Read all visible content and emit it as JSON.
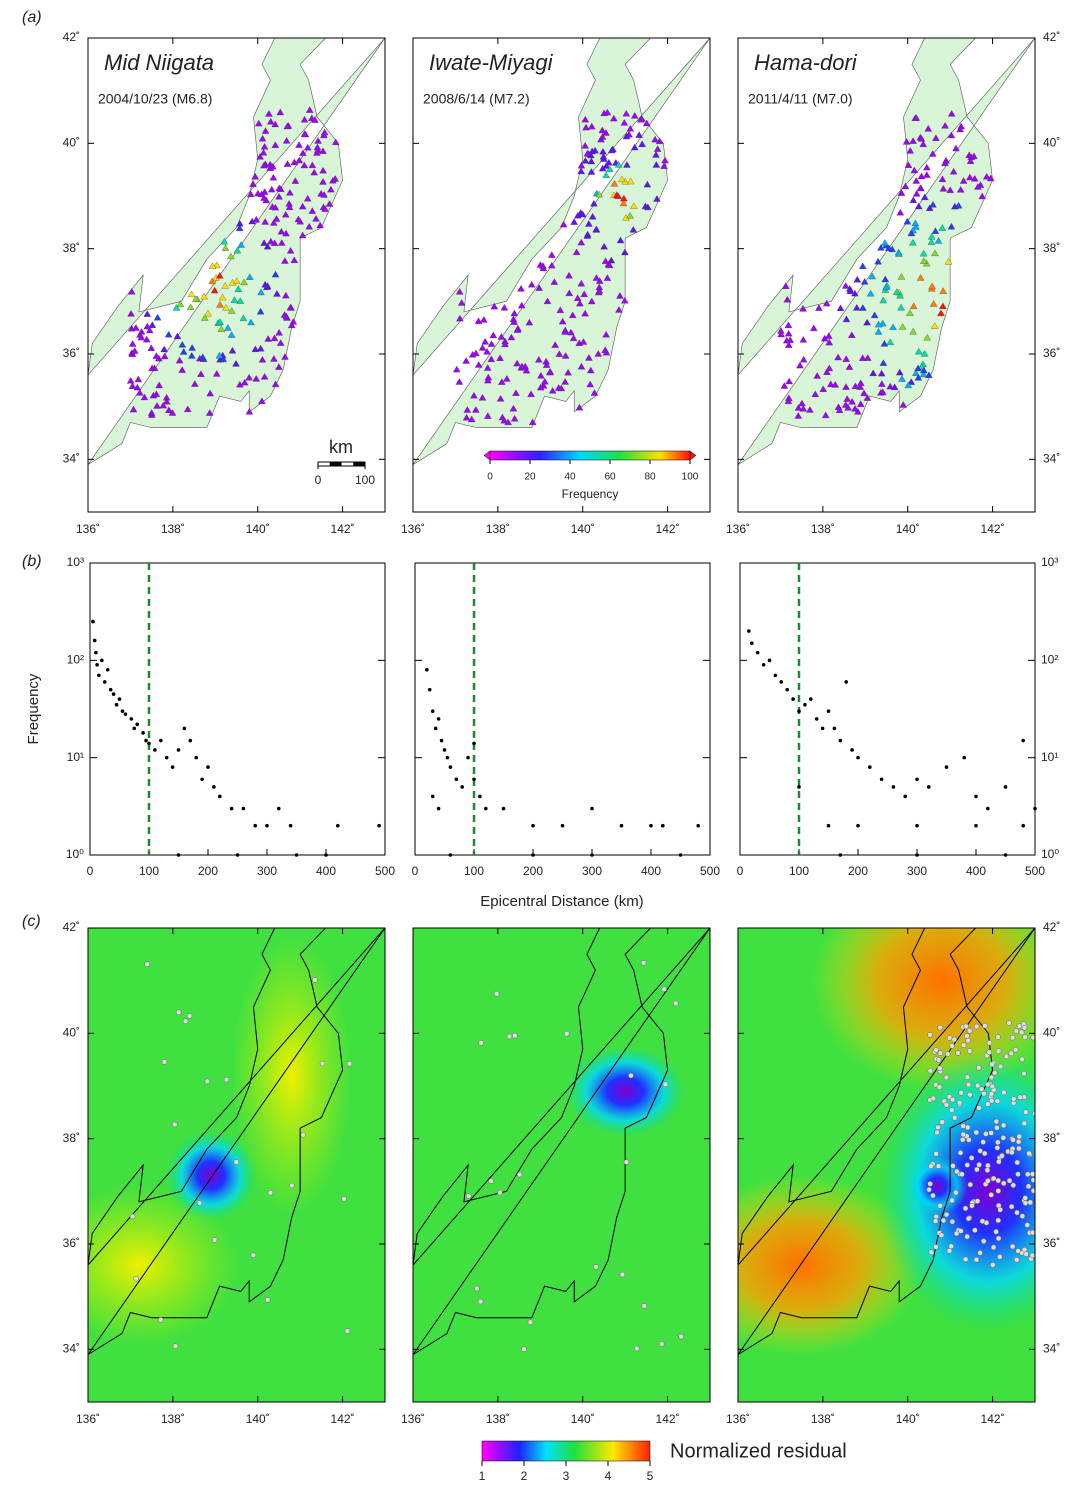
{
  "panel_labels": [
    "(a)",
    "(b)",
    "(c)"
  ],
  "map_axes": {
    "xlim": [
      136,
      143
    ],
    "ylim": [
      33,
      42
    ],
    "xticks": [
      {
        "value": 136,
        "label": "136˚"
      },
      {
        "value": 138,
        "label": "138˚"
      },
      {
        "value": 140,
        "label": "140˚"
      },
      {
        "value": 142,
        "label": "142˚"
      }
    ],
    "yticks": [
      {
        "value": 34,
        "label": "34˚"
      },
      {
        "value": 36,
        "label": "36˚"
      },
      {
        "value": 38,
        "label": "38˚"
      },
      {
        "value": 40,
        "label": "40˚"
      },
      {
        "value": 42,
        "label": "42˚"
      }
    ]
  },
  "events": [
    {
      "name": "Mid Niigata",
      "detail": "2004/10/23 (M6.8)"
    },
    {
      "name": "Iwate-Miyagi",
      "detail": "2008/6/14 (M7.2)"
    },
    {
      "name": "Hama-dori",
      "detail": "2011/4/11 (M7.0)"
    }
  ],
  "scale_bar": {
    "title": "km",
    "ticks": [
      0,
      100
    ]
  },
  "frequency_colorbar": {
    "title": "Frequency",
    "lim": [
      0,
      100
    ],
    "ticks": [
      0,
      20,
      40,
      60,
      80,
      100
    ]
  },
  "residual_colorbar": {
    "title": "Normalized residual",
    "lim": [
      1,
      5
    ],
    "ticks": [
      1,
      2,
      3,
      4,
      5
    ]
  },
  "x_label": "Epicentral Distance (km)",
  "chart_data": [
    {
      "type": "scatter",
      "y_label": "Frequency",
      "log_y": true,
      "xlim": [
        0,
        500
      ],
      "ylim": [
        1,
        1000
      ],
      "xticks": [
        0,
        100,
        200,
        300,
        400,
        500
      ],
      "yticks": [
        {
          "value": 1,
          "label": "10⁰"
        },
        {
          "value": 10,
          "label": "10¹"
        },
        {
          "value": 100,
          "label": "10²"
        },
        {
          "value": 1000,
          "label": "10³"
        }
      ],
      "reference_x": 100,
      "x": [
        5,
        8,
        10,
        12,
        15,
        20,
        25,
        30,
        35,
        40,
        45,
        50,
        55,
        60,
        70,
        75,
        80,
        90,
        95,
        100,
        110,
        120,
        130,
        140,
        150,
        160,
        170,
        180,
        190,
        200,
        210,
        220,
        240,
        260,
        280,
        300,
        320,
        340,
        400,
        420,
        490,
        150,
        250,
        350
      ],
      "y": [
        250,
        160,
        120,
        90,
        70,
        100,
        60,
        80,
        50,
        45,
        35,
        40,
        30,
        28,
        25,
        20,
        22,
        18,
        15,
        14,
        12,
        15,
        10,
        8,
        12,
        20,
        15,
        10,
        6,
        8,
        5,
        4,
        3,
        3,
        2,
        2,
        3,
        2,
        1,
        2,
        2,
        1,
        1,
        1
      ]
    },
    {
      "type": "scatter",
      "log_y": true,
      "xlim": [
        0,
        500
      ],
      "ylim": [
        1,
        1000
      ],
      "xticks": [
        0,
        100,
        200,
        300,
        400,
        500
      ],
      "yticks": [
        {
          "value": 1,
          "label": "10⁰"
        },
        {
          "value": 10,
          "label": "10¹"
        },
        {
          "value": 100,
          "label": "10²"
        },
        {
          "value": 1000,
          "label": "10³"
        }
      ],
      "reference_x": 100,
      "x": [
        20,
        25,
        30,
        35,
        40,
        45,
        50,
        55,
        60,
        70,
        80,
        90,
        100,
        100,
        110,
        120,
        150,
        200,
        250,
        300,
        350,
        400,
        420,
        480,
        60,
        200,
        300,
        450,
        30,
        40
      ],
      "y": [
        80,
        50,
        30,
        20,
        25,
        15,
        12,
        10,
        8,
        6,
        5,
        10,
        14,
        6,
        4,
        3,
        3,
        2,
        2,
        3,
        2,
        2,
        2,
        2,
        1,
        1,
        1,
        1,
        4,
        3
      ]
    },
    {
      "type": "scatter",
      "log_y": true,
      "xlim": [
        0,
        500
      ],
      "ylim": [
        1,
        1000
      ],
      "xticks": [
        0,
        100,
        200,
        300,
        400,
        500
      ],
      "yticks": [
        {
          "value": 1,
          "label": "10⁰"
        },
        {
          "value": 10,
          "label": "10¹"
        },
        {
          "value": 100,
          "label": "10²"
        },
        {
          "value": 1000,
          "label": "10³"
        }
      ],
      "reference_x": 100,
      "x": [
        15,
        20,
        30,
        40,
        50,
        60,
        70,
        80,
        90,
        100,
        110,
        120,
        130,
        140,
        150,
        160,
        170,
        180,
        190,
        200,
        220,
        240,
        260,
        280,
        300,
        320,
        350,
        380,
        400,
        420,
        450,
        480,
        500,
        100,
        150,
        200,
        300,
        400,
        480,
        170,
        300,
        450
      ],
      "y": [
        200,
        150,
        120,
        90,
        100,
        70,
        60,
        50,
        40,
        30,
        35,
        40,
        25,
        20,
        30,
        20,
        15,
        60,
        12,
        10,
        8,
        6,
        5,
        4,
        6,
        5,
        8,
        10,
        4,
        3,
        5,
        15,
        3,
        5,
        2,
        2,
        2,
        2,
        2,
        1,
        1,
        1
      ]
    }
  ]
}
